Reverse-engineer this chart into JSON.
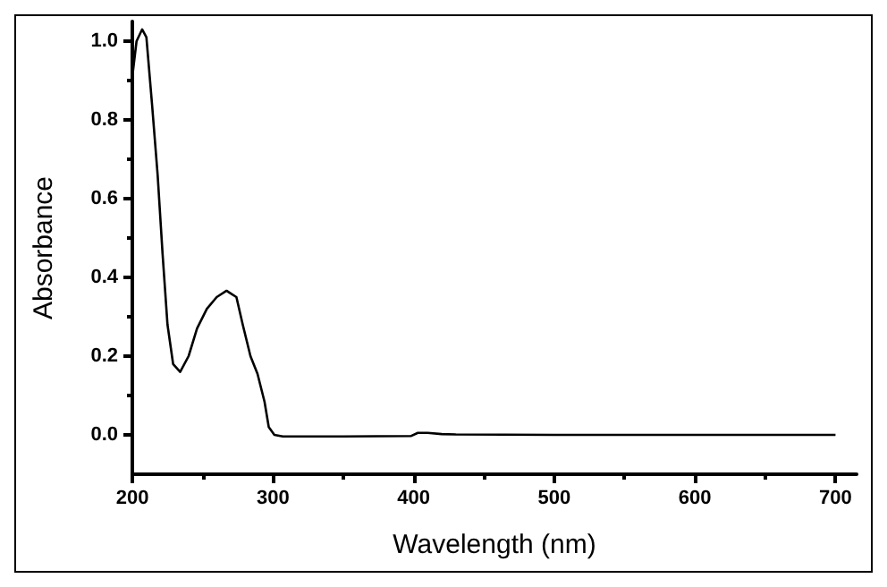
{
  "chart_data": {
    "type": "line",
    "xlabel": "Wavelength (nm)",
    "ylabel": "Absorbance",
    "xlim": [
      200,
      715
    ],
    "xticks": [
      200,
      300,
      400,
      500,
      600,
      700
    ],
    "ylim": [
      -0.1,
      1.05
    ],
    "yticks": [
      {
        "value": 0,
        "label": "0.0"
      },
      0.2,
      0.4,
      0.6,
      0.8,
      {
        "value": 1,
        "label": "1.0"
      }
    ],
    "marker": "none",
    "line_style": "solid",
    "series": [
      {
        "color": "#000000",
        "x": [
          200,
          203,
          207,
          210,
          214,
          218,
          221.5,
          225,
          229,
          234,
          240,
          246,
          253,
          260,
          267,
          274,
          278.5,
          284,
          289,
          294,
          297,
          301,
          307,
          350,
          398,
          403,
          410,
          420,
          430,
          500,
          600,
          700
        ],
        "values": [
          0.91,
          1.0,
          1.03,
          1.01,
          0.84,
          0.66,
          0.46,
          0.28,
          0.18,
          0.16,
          0.2,
          0.27,
          0.32,
          0.35,
          0.366,
          0.35,
          0.28,
          0.2,
          0.155,
          0.084,
          0.02,
          0.0,
          -0.004,
          -0.004,
          -0.003,
          0.005,
          0.005,
          0.002,
          0.001,
          0.0,
          0.0,
          0.0
        ]
      }
    ]
  }
}
